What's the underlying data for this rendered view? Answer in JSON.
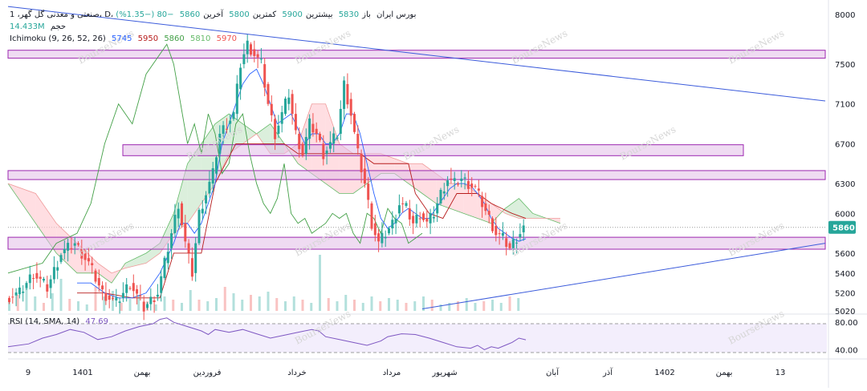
{
  "header": {
    "symbol": "صنعتی و معدنی گل گهر، 1، D، بورس ایران",
    "open_label": "باز",
    "open": "5830",
    "high_label": "بیشترین",
    "high": "5900",
    "low_label": "کمترین",
    "low": "5800",
    "close_label": "آخرین",
    "close": "5860",
    "change": "−80 (−1.35%)",
    "volume_label": "حجم",
    "volume": "14.433M",
    "ichimoku_label": "Ichimoku (9, 26, 52, 26)",
    "ichimoku_values": [
      "5745",
      "5950",
      "5860",
      "5810",
      "5970"
    ],
    "rsi_label": "RSI (14, SMA, 14)",
    "rsi_value": "47.69"
  },
  "watermark": "BourseNews",
  "colors": {
    "up": "#26a69a",
    "down": "#ef5350",
    "tenkan": "#2962ff",
    "kijun": "#b71c1c",
    "chikou": "#43a047",
    "span_a": "#66bb6a",
    "span_b": "#ef9a9a",
    "zone_fill": "#e1bee7",
    "zone_border": "#9c27b0",
    "trend": "#3b5bdb",
    "rsi": "#7e57c2",
    "last_price_bg": "#26a69a"
  },
  "chart_data": {
    "type": "candlestick",
    "title": "صنعتی و معدنی گل گهر",
    "y_ticks": [
      "8000",
      "7500",
      "7100",
      "6700",
      "6300",
      "6000",
      "5600",
      "5400",
      "5200",
      "5020"
    ],
    "ylim": [
      5020,
      8000
    ],
    "last_price": "5860",
    "rsi_ticks": [
      "80.00",
      "40.00"
    ],
    "rsi_bands": [
      70,
      30
    ],
    "x_labels": [
      "9",
      "1401",
      "بهمن",
      "فروردین",
      "خرداد",
      "مرداد",
      "شهریور",
      "آبان",
      "آذر",
      "1402",
      "بهمن",
      "13"
    ],
    "support_resistance_zones": [
      {
        "low": 7560,
        "high": 7640
      },
      {
        "low": 6580,
        "high": 6690
      },
      {
        "low": 6340,
        "high": 6430
      },
      {
        "low": 5640,
        "high": 5760
      }
    ],
    "trendlines": [
      {
        "name": "down",
        "from": {
          "bar": 0,
          "price": 8080
        },
        "to": {
          "bar": 240,
          "price": 7130
        }
      },
      {
        "name": "up",
        "from": {
          "bar": 120,
          "price": 5040
        },
        "to": {
          "bar": 240,
          "price": 5700
        }
      }
    ],
    "close_path": [
      [
        0,
        5150
      ],
      [
        4,
        5200
      ],
      [
        8,
        5400
      ],
      [
        12,
        5250
      ],
      [
        16,
        5600
      ],
      [
        20,
        5700
      ],
      [
        24,
        5500
      ],
      [
        28,
        5200
      ],
      [
        32,
        5100
      ],
      [
        36,
        5300
      ],
      [
        40,
        5050
      ],
      [
        44,
        5200
      ],
      [
        48,
        5800
      ],
      [
        50,
        6100
      ],
      [
        52,
        5700
      ],
      [
        54,
        5400
      ],
      [
        56,
        6000
      ],
      [
        58,
        6200
      ],
      [
        60,
        6400
      ],
      [
        62,
        6800
      ],
      [
        64,
        6900
      ],
      [
        66,
        7000
      ],
      [
        68,
        7500
      ],
      [
        70,
        7700
      ],
      [
        72,
        7600
      ],
      [
        74,
        7500
      ],
      [
        76,
        7100
      ],
      [
        78,
        6800
      ],
      [
        80,
        7000
      ],
      [
        82,
        7200
      ],
      [
        84,
        6800
      ],
      [
        86,
        6600
      ],
      [
        88,
        6900
      ],
      [
        90,
        6800
      ],
      [
        92,
        6600
      ],
      [
        94,
        6700
      ],
      [
        96,
        6800
      ],
      [
        98,
        7300
      ],
      [
        100,
        7000
      ],
      [
        102,
        6600
      ],
      [
        104,
        6300
      ],
      [
        106,
        5900
      ],
      [
        108,
        5700
      ],
      [
        110,
        5800
      ],
      [
        112,
        5900
      ],
      [
        114,
        6100
      ],
      [
        116,
        6050
      ],
      [
        118,
        5900
      ],
      [
        120,
        6000
      ],
      [
        122,
        5900
      ],
      [
        124,
        6000
      ],
      [
        126,
        6200
      ],
      [
        128,
        6350
      ],
      [
        130,
        6300
      ],
      [
        132,
        6350
      ],
      [
        134,
        6300
      ],
      [
        136,
        6250
      ],
      [
        138,
        6100
      ],
      [
        140,
        5950
      ],
      [
        142,
        5800
      ],
      [
        144,
        5750
      ],
      [
        146,
        5650
      ],
      [
        148,
        5760
      ],
      [
        150,
        5860
      ]
    ],
    "volume_heights": [
      12,
      20,
      35,
      18,
      10,
      22,
      40,
      15,
      12,
      8,
      30,
      18,
      25,
      10,
      15,
      20,
      12,
      8,
      18,
      14,
      10,
      26,
      14,
      12,
      16,
      30,
      22,
      14,
      20,
      18,
      24,
      16,
      12,
      18,
      14,
      10,
      70,
      16,
      12,
      20,
      14,
      10,
      18,
      12,
      16,
      14,
      10,
      12,
      18,
      14,
      8,
      10,
      12,
      16,
      10,
      12,
      14,
      10,
      18,
      16
    ],
    "chikou": [
      [
        0,
        5400
      ],
      [
        10,
        5500
      ],
      [
        14,
        5700
      ],
      [
        20,
        5800
      ],
      [
        24,
        6100
      ],
      [
        28,
        6700
      ],
      [
        32,
        7100
      ],
      [
        36,
        6900
      ],
      [
        40,
        7400
      ],
      [
        44,
        7600
      ],
      [
        46,
        7700
      ],
      [
        48,
        7500
      ],
      [
        50,
        7100
      ],
      [
        52,
        6700
      ],
      [
        54,
        6900
      ],
      [
        56,
        6600
      ],
      [
        58,
        7000
      ],
      [
        60,
        6800
      ],
      [
        62,
        6400
      ],
      [
        64,
        6500
      ],
      [
        66,
        6900
      ],
      [
        68,
        7000
      ],
      [
        70,
        6600
      ],
      [
        72,
        6300
      ],
      [
        74,
        6100
      ],
      [
        76,
        6000
      ],
      [
        78,
        6150
      ],
      [
        80,
        6500
      ],
      [
        82,
        6000
      ],
      [
        84,
        5900
      ],
      [
        86,
        5950
      ],
      [
        88,
        5800
      ],
      [
        90,
        5850
      ],
      [
        92,
        5900
      ],
      [
        94,
        6000
      ],
      [
        96,
        5950
      ],
      [
        98,
        6000
      ],
      [
        100,
        5800
      ],
      [
        102,
        5700
      ],
      [
        104,
        6000
      ],
      [
        106,
        5950
      ],
      [
        108,
        5800
      ],
      [
        110,
        6050
      ],
      [
        112,
        5950
      ],
      [
        114,
        5900
      ],
      [
        116,
        5700
      ],
      [
        118,
        5750
      ],
      [
        120,
        5800
      ]
    ],
    "tenkan": [
      [
        20,
        5300
      ],
      [
        24,
        5300
      ],
      [
        28,
        5200
      ],
      [
        32,
        5150
      ],
      [
        36,
        5150
      ],
      [
        40,
        5200
      ],
      [
        44,
        5400
      ],
      [
        48,
        5700
      ],
      [
        50,
        5900
      ],
      [
        52,
        5900
      ],
      [
        54,
        5800
      ],
      [
        56,
        5900
      ],
      [
        58,
        6100
      ],
      [
        60,
        6300
      ],
      [
        62,
        6700
      ],
      [
        64,
        6900
      ],
      [
        66,
        7100
      ],
      [
        68,
        7300
      ],
      [
        70,
        7400
      ],
      [
        72,
        7450
      ],
      [
        74,
        7300
      ],
      [
        76,
        7100
      ],
      [
        78,
        6900
      ],
      [
        80,
        6950
      ],
      [
        82,
        7000
      ],
      [
        84,
        6850
      ],
      [
        86,
        6700
      ],
      [
        88,
        6800
      ],
      [
        90,
        6800
      ],
      [
        92,
        6700
      ],
      [
        94,
        6700
      ],
      [
        96,
        6800
      ],
      [
        98,
        7000
      ],
      [
        100,
        7000
      ],
      [
        102,
        6800
      ],
      [
        104,
        6500
      ],
      [
        106,
        6200
      ],
      [
        108,
        5950
      ],
      [
        110,
        5850
      ],
      [
        112,
        5900
      ],
      [
        114,
        6000
      ],
      [
        116,
        6050
      ],
      [
        118,
        6000
      ],
      [
        120,
        5950
      ],
      [
        122,
        5950
      ],
      [
        124,
        6050
      ],
      [
        126,
        6150
      ],
      [
        128,
        6250
      ],
      [
        130,
        6300
      ],
      [
        132,
        6300
      ],
      [
        134,
        6280
      ],
      [
        136,
        6200
      ],
      [
        138,
        6100
      ],
      [
        140,
        5950
      ],
      [
        142,
        5850
      ],
      [
        144,
        5800
      ],
      [
        146,
        5750
      ],
      [
        148,
        5720
      ],
      [
        150,
        5745
      ]
    ],
    "kijun": [
      [
        20,
        5200
      ],
      [
        28,
        5200
      ],
      [
        36,
        5150
      ],
      [
        44,
        5150
      ],
      [
        48,
        5600
      ],
      [
        56,
        5600
      ],
      [
        60,
        6300
      ],
      [
        66,
        6700
      ],
      [
        74,
        6700
      ],
      [
        80,
        6700
      ],
      [
        84,
        6600
      ],
      [
        92,
        6600
      ],
      [
        98,
        6600
      ],
      [
        102,
        6600
      ],
      [
        106,
        6500
      ],
      [
        110,
        6500
      ],
      [
        116,
        6500
      ],
      [
        118,
        6200
      ],
      [
        122,
        6000
      ],
      [
        126,
        5950
      ],
      [
        130,
        6200
      ],
      [
        136,
        6200
      ],
      [
        140,
        6100
      ],
      [
        146,
        6000
      ],
      [
        150,
        5950
      ]
    ],
    "span_a": [
      [
        0,
        6300
      ],
      [
        8,
        5900
      ],
      [
        14,
        5600
      ],
      [
        20,
        5400
      ],
      [
        26,
        5400
      ],
      [
        30,
        5300
      ],
      [
        34,
        5500
      ],
      [
        40,
        5600
      ],
      [
        44,
        5700
      ],
      [
        48,
        6000
      ],
      [
        52,
        6500
      ],
      [
        56,
        6700
      ],
      [
        60,
        6900
      ],
      [
        64,
        7000
      ],
      [
        68,
        6900
      ],
      [
        72,
        6800
      ],
      [
        76,
        6900
      ],
      [
        80,
        6700
      ],
      [
        84,
        6500
      ],
      [
        88,
        6400
      ],
      [
        92,
        6300
      ],
      [
        96,
        6200
      ],
      [
        100,
        6200
      ],
      [
        104,
        6300
      ],
      [
        108,
        6400
      ],
      [
        112,
        6400
      ],
      [
        116,
        6300
      ],
      [
        120,
        6200
      ],
      [
        124,
        6100
      ],
      [
        128,
        6050
      ],
      [
        132,
        6000
      ],
      [
        136,
        5950
      ],
      [
        140,
        5900
      ],
      [
        144,
        6050
      ],
      [
        148,
        6150
      ],
      [
        152,
        6000
      ],
      [
        156,
        5950
      ],
      [
        160,
        5900
      ]
    ],
    "span_b": [
      [
        0,
        6300
      ],
      [
        8,
        6200
      ],
      [
        14,
        5900
      ],
      [
        20,
        5700
      ],
      [
        26,
        5500
      ],
      [
        30,
        5400
      ],
      [
        34,
        5450
      ],
      [
        40,
        5500
      ],
      [
        44,
        5600
      ],
      [
        48,
        5800
      ],
      [
        52,
        5900
      ],
      [
        56,
        6100
      ],
      [
        60,
        6300
      ],
      [
        64,
        6600
      ],
      [
        68,
        6700
      ],
      [
        72,
        6800
      ],
      [
        76,
        6600
      ],
      [
        80,
        6600
      ],
      [
        84,
        6700
      ],
      [
        88,
        7100
      ],
      [
        92,
        7100
      ],
      [
        96,
        6700
      ],
      [
        100,
        6600
      ],
      [
        104,
        6600
      ],
      [
        108,
        6600
      ],
      [
        112,
        6550
      ],
      [
        116,
        6500
      ],
      [
        120,
        6500
      ],
      [
        124,
        6400
      ],
      [
        128,
        6300
      ],
      [
        132,
        6300
      ],
      [
        136,
        6200
      ],
      [
        140,
        6100
      ],
      [
        144,
        6000
      ],
      [
        148,
        5950
      ],
      [
        152,
        5950
      ],
      [
        156,
        5950
      ],
      [
        160,
        5950
      ]
    ],
    "rsi": [
      [
        0,
        38
      ],
      [
        6,
        42
      ],
      [
        10,
        50
      ],
      [
        14,
        55
      ],
      [
        18,
        62
      ],
      [
        22,
        58
      ],
      [
        26,
        48
      ],
      [
        30,
        52
      ],
      [
        34,
        60
      ],
      [
        38,
        66
      ],
      [
        42,
        70
      ],
      [
        44,
        76
      ],
      [
        46,
        78
      ],
      [
        48,
        72
      ],
      [
        52,
        66
      ],
      [
        56,
        60
      ],
      [
        58,
        55
      ],
      [
        60,
        62
      ],
      [
        64,
        58
      ],
      [
        68,
        62
      ],
      [
        72,
        56
      ],
      [
        76,
        50
      ],
      [
        80,
        54
      ],
      [
        84,
        58
      ],
      [
        88,
        62
      ],
      [
        90,
        60
      ],
      [
        92,
        52
      ],
      [
        96,
        48
      ],
      [
        100,
        44
      ],
      [
        104,
        40
      ],
      [
        108,
        46
      ],
      [
        110,
        52
      ],
      [
        114,
        56
      ],
      [
        118,
        55
      ],
      [
        122,
        50
      ],
      [
        126,
        44
      ],
      [
        130,
        38
      ],
      [
        134,
        36
      ],
      [
        136,
        40
      ],
      [
        138,
        34
      ],
      [
        140,
        38
      ],
      [
        142,
        36
      ],
      [
        144,
        40
      ],
      [
        146,
        44
      ],
      [
        148,
        50
      ],
      [
        150,
        47.69
      ]
    ]
  }
}
